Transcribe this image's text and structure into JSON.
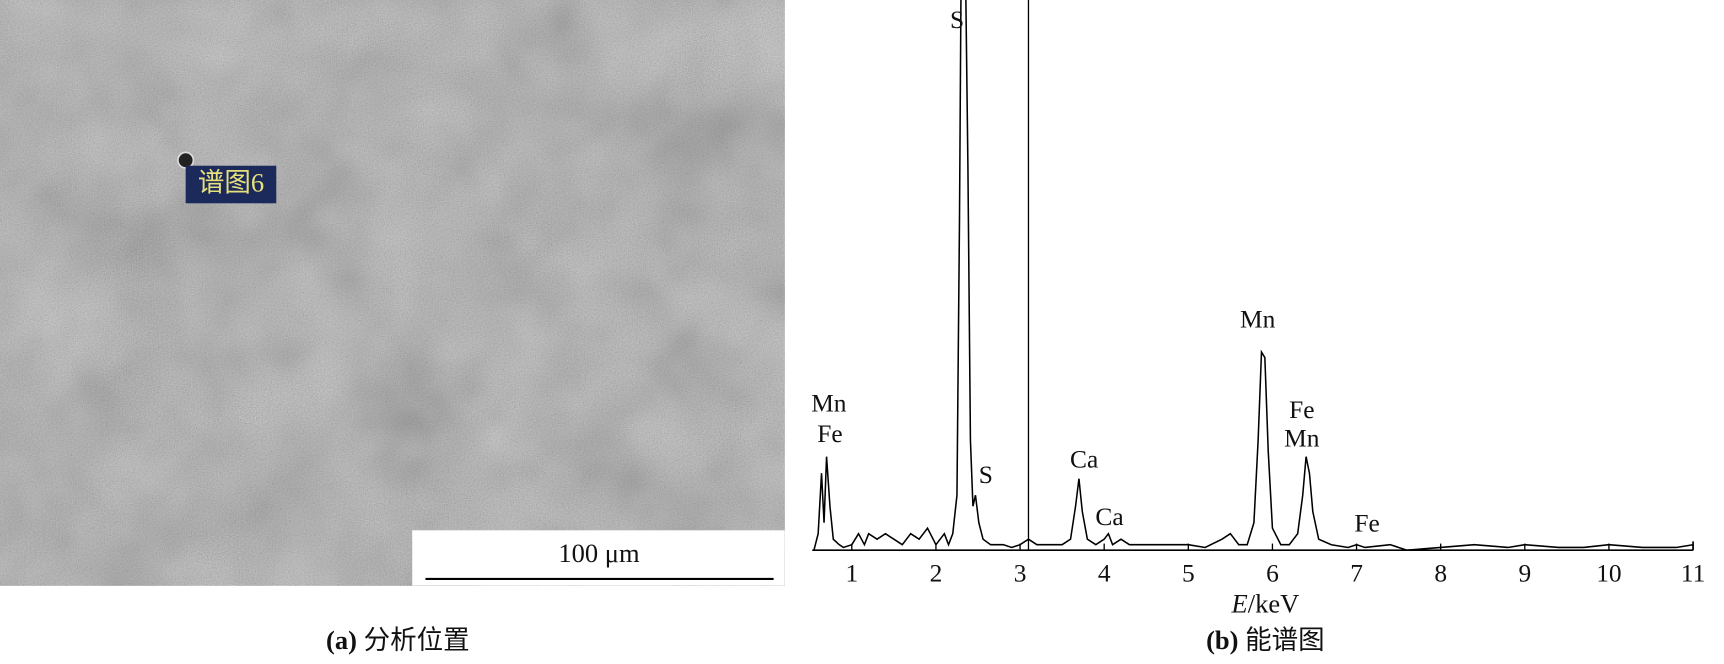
{
  "chart_data": {
    "type": "line",
    "x": [
      0.55,
      0.6,
      0.64,
      0.67,
      0.7,
      0.74,
      0.78,
      0.85,
      0.9,
      1.0,
      1.08,
      1.15,
      1.2,
      1.3,
      1.4,
      1.5,
      1.6,
      1.7,
      1.8,
      1.9,
      2.0,
      2.1,
      2.15,
      2.2,
      2.25,
      2.28,
      2.31,
      2.34,
      2.38,
      2.41,
      2.44,
      2.47,
      2.51,
      2.56,
      2.65,
      2.8,
      2.9,
      3.0,
      3.1,
      3.2,
      3.35,
      3.5,
      3.6,
      3.66,
      3.7,
      3.74,
      3.8,
      3.9,
      4.0,
      4.05,
      4.1,
      4.2,
      4.3,
      4.5,
      4.7,
      5.0,
      5.2,
      5.4,
      5.5,
      5.6,
      5.7,
      5.78,
      5.83,
      5.87,
      5.91,
      5.95,
      6.0,
      6.1,
      6.2,
      6.3,
      6.36,
      6.4,
      6.44,
      6.48,
      6.55,
      6.7,
      6.9,
      7.0,
      7.1,
      7.4,
      7.6,
      8.0,
      8.4,
      8.8,
      9.0,
      9.4,
      9.7,
      10.0,
      10.4,
      10.8,
      11
    ],
    "values": [
      0,
      3,
      14,
      5,
      17,
      8,
      2,
      1,
      0.5,
      1,
      3,
      1,
      3,
      2,
      3,
      2,
      1,
      3,
      2,
      4,
      1,
      3,
      1,
      3,
      10,
      60,
      130,
      120,
      70,
      20,
      8,
      10,
      5,
      2,
      1,
      1,
      0.5,
      1,
      2,
      1,
      1,
      1,
      2,
      8,
      13,
      7,
      2,
      1,
      2,
      3,
      1,
      2,
      1,
      1,
      1,
      1,
      0.5,
      2,
      3,
      1,
      1,
      5,
      20,
      36,
      35,
      18,
      4,
      1,
      1,
      3,
      10,
      17,
      14,
      7,
      2,
      1,
      0.5,
      1,
      0.5,
      1,
      0,
      0.5,
      1,
      0.5,
      1,
      0.5,
      0.5,
      1,
      0.5,
      0.5,
      1
    ],
    "color": "#000000",
    "xlim": [
      0.53,
      11
    ],
    "ylim": [
      0,
      100
    ],
    "xticks": [
      1,
      2,
      3,
      4,
      5,
      6,
      7,
      8,
      9,
      10,
      11
    ],
    "marker_x": 3.1,
    "xlabel": {
      "var": "E",
      "unit": "/keV"
    },
    "annotations": [
      "S",
      "Mn",
      "Fe",
      "S",
      "Ca",
      "Ca",
      "Mn",
      "Fe",
      "Mn",
      "Fe"
    ],
    "caption": {
      "label": "(b)",
      "text": "能谱图"
    }
  },
  "image_panel": {
    "spot_label": "谱图6",
    "scale_bar": "100 μm",
    "caption": {
      "label": "(a)",
      "text": "分析位置"
    }
  }
}
